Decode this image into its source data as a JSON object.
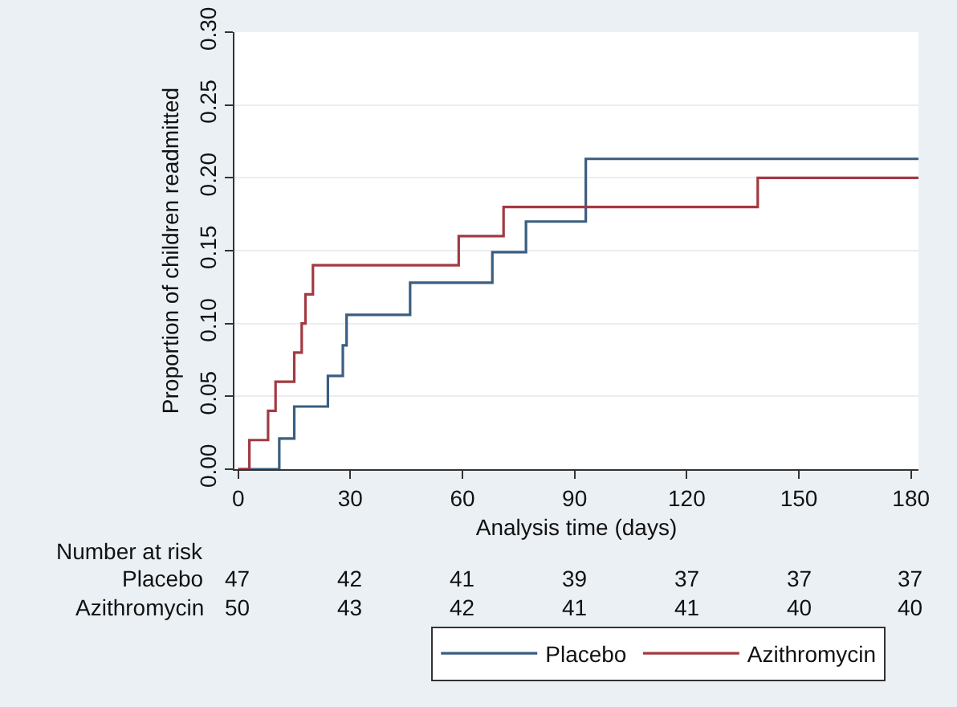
{
  "chart_data": {
    "type": "step",
    "xlabel": "Analysis time (days)",
    "ylabel": "Proportion of children readmitted",
    "series": [
      {
        "name": "Placebo",
        "color": "#3a5e80",
        "x": [
          0,
          11,
          15,
          24,
          28,
          29,
          46,
          68,
          77,
          93,
          182
        ],
        "values": [
          0,
          0.021,
          0.043,
          0.064,
          0.085,
          0.106,
          0.128,
          0.149,
          0.17,
          0.213,
          0.213
        ]
      },
      {
        "name": "Azithromycin",
        "color": "#a23a42",
        "x": [
          0,
          3,
          8,
          10,
          15,
          17,
          18,
          20,
          59,
          71,
          139,
          182
        ],
        "values": [
          0,
          0.02,
          0.04,
          0.06,
          0.08,
          0.1,
          0.12,
          0.14,
          0.16,
          0.18,
          0.2,
          0.2
        ]
      }
    ],
    "xlim": [
      -1,
      182
    ],
    "xticks": [
      0,
      30,
      60,
      90,
      120,
      150,
      180
    ],
    "ylim": [
      0,
      0.3
    ],
    "yticks": [
      {
        "value": 0,
        "label": "0.00"
      },
      {
        "value": 0.05,
        "label": "0.05"
      },
      {
        "value": 0.1,
        "label": "0.10"
      },
      {
        "value": 0.15,
        "label": "0.15"
      },
      {
        "value": 0.2,
        "label": "0.20"
      },
      {
        "value": 0.25,
        "label": "0.25"
      },
      {
        "value": 0.3,
        "label": "0.30"
      }
    ],
    "grid": "y",
    "legend": "bottom",
    "line_style": "solid",
    "annotations": [
      "Number at risk",
      "Placebo",
      "47",
      "42",
      "41",
      "39",
      "37",
      "37",
      "37",
      "Azithromycin",
      "50",
      "43",
      "42",
      "41",
      "41",
      "40",
      "40"
    ]
  }
}
